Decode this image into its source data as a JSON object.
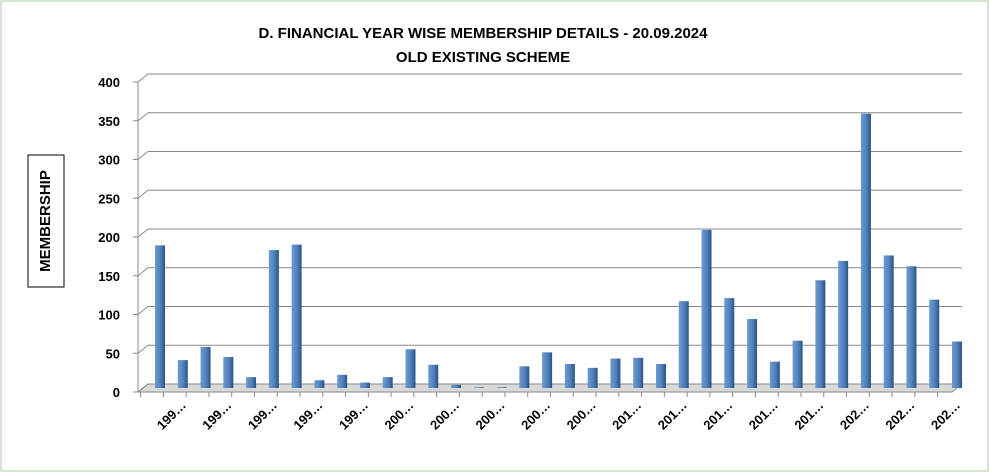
{
  "chart_data": {
    "type": "bar",
    "title": "D. FINANCIAL YEAR WISE MEMBERSHIP DETAILS - 20.09.2024",
    "subtitle": "OLD EXISTING SCHEME",
    "y_label": "MEMBERSHIP",
    "categories": [
      null,
      "199…",
      null,
      "199…",
      null,
      "199…",
      null,
      "199…",
      null,
      "199…",
      null,
      "200…",
      null,
      "200…",
      null,
      "200…",
      null,
      "200…",
      null,
      "200…",
      null,
      "201…",
      null,
      "201…",
      null,
      "201…",
      null,
      "201…",
      null,
      "201…",
      null,
      "202…",
      null,
      "202…",
      null,
      "202…"
    ],
    "values": [
      184,
      36,
      53,
      40,
      14,
      178,
      185,
      10,
      17,
      7,
      14,
      50,
      30,
      4,
      1,
      1,
      28,
      46,
      31,
      26,
      38,
      39,
      31,
      112,
      204,
      116,
      89,
      34,
      61,
      139,
      164,
      354,
      171,
      157,
      114,
      60
    ],
    "color": "#4f81bd",
    "ylim": [
      0,
      400
    ],
    "yticks": [
      0,
      50,
      100,
      150,
      200,
      250,
      300,
      350,
      400
    ],
    "grid": true
  }
}
